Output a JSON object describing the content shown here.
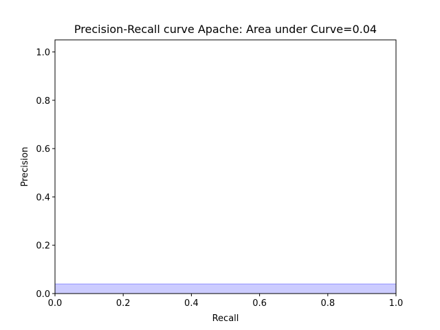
{
  "chart_data": {
    "type": "area",
    "title": "Precision-Recall curve Apache: Area under Curve=0.04",
    "xlabel": "Recall",
    "ylabel": "Precision",
    "xlim": [
      0.0,
      1.0
    ],
    "ylim": [
      0.0,
      1.05
    ],
    "x_ticks": [
      0.0,
      0.2,
      0.4,
      0.6,
      0.8,
      1.0
    ],
    "y_ticks": [
      0.0,
      0.2,
      0.4,
      0.6,
      0.8,
      1.0
    ],
    "x_tick_labels": [
      "0.0",
      "0.2",
      "0.4",
      "0.6",
      "0.8",
      "1.0"
    ],
    "y_tick_labels": [
      "0.0",
      "0.2",
      "0.4",
      "0.6",
      "0.8",
      "1.0"
    ],
    "grid": false,
    "series": [
      {
        "x": [
          0.0,
          1.0
        ],
        "y": [
          0.04,
          0.04
        ],
        "fill": true,
        "fill_color": "#0000ff",
        "fill_alpha": 0.2,
        "line_color": "#0000ff"
      }
    ]
  }
}
